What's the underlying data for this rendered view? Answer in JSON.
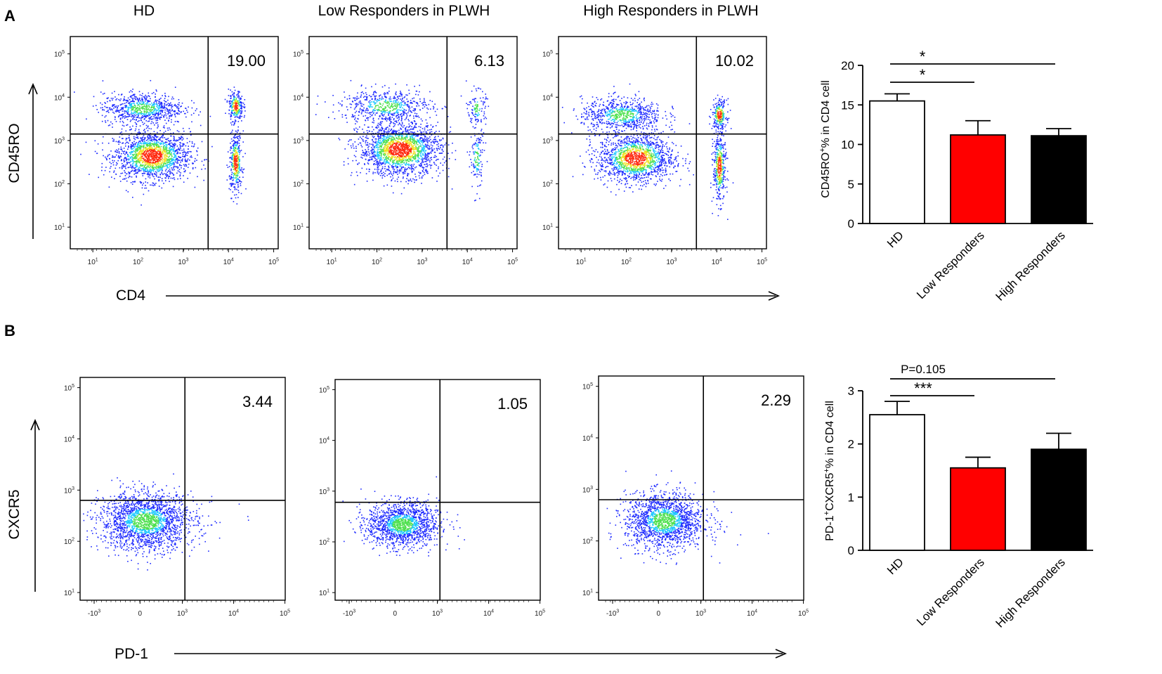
{
  "figure": {
    "panel_a_letter": "A",
    "panel_b_letter": "B"
  },
  "chart_data": [
    {
      "type": "scatter",
      "panel": "A",
      "role": "flow-cytometry-density-plots",
      "columns": [
        "HD",
        "Low Responders in PLWH",
        "High Responders in PLWH"
      ],
      "xlabel": "CD4",
      "ylabel": "CD45RO",
      "x_ticks": [
        "10",
        "10",
        "10",
        "10",
        "10"
      ],
      "x_tick_exponents": [
        "1",
        "2",
        "3",
        "4",
        "5"
      ],
      "y_ticks": [
        "10",
        "10",
        "10",
        "10",
        "10"
      ],
      "y_tick_exponents": [
        "1",
        "2",
        "3",
        "4",
        "5"
      ],
      "x_log_range": [
        0.5,
        5.1
      ],
      "y_log_range": [
        0.5,
        5.4
      ],
      "quadrant_percentages": [
        "19.00",
        "6.13",
        "10.02"
      ],
      "gate_log": [
        [
          3.55,
          3.15
        ],
        [
          3.55,
          3.15
        ],
        [
          3.55,
          3.15
        ]
      ],
      "populations": [
        [
          {
            "cx": 2.3,
            "cy": 2.65,
            "sx": 0.42,
            "sy": 0.28,
            "n": 1700,
            "hot": true
          },
          {
            "cx": 2.1,
            "cy": 3.75,
            "sx": 0.45,
            "sy": 0.18,
            "n": 800
          },
          {
            "cx": 4.15,
            "cy": 3.8,
            "sx": 0.08,
            "sy": 0.18,
            "n": 260,
            "hot": true
          },
          {
            "cx": 4.15,
            "cy": 2.5,
            "sx": 0.07,
            "sy": 0.35,
            "n": 380,
            "hot": true
          }
        ],
        [
          {
            "cx": 2.5,
            "cy": 2.8,
            "sx": 0.45,
            "sy": 0.3,
            "n": 1900,
            "hot": true
          },
          {
            "cx": 2.2,
            "cy": 3.8,
            "sx": 0.5,
            "sy": 0.2,
            "n": 600
          },
          {
            "cx": 4.2,
            "cy": 3.75,
            "sx": 0.1,
            "sy": 0.2,
            "n": 110
          },
          {
            "cx": 4.2,
            "cy": 2.6,
            "sx": 0.07,
            "sy": 0.4,
            "n": 140
          }
        ],
        [
          {
            "cx": 2.2,
            "cy": 2.6,
            "sx": 0.42,
            "sy": 0.28,
            "n": 1500,
            "hot": true
          },
          {
            "cx": 1.9,
            "cy": 3.6,
            "sx": 0.45,
            "sy": 0.2,
            "n": 750
          },
          {
            "cx": 4.05,
            "cy": 3.6,
            "sx": 0.08,
            "sy": 0.18,
            "n": 240,
            "hot": true
          },
          {
            "cx": 4.05,
            "cy": 2.4,
            "sx": 0.07,
            "sy": 0.4,
            "n": 420,
            "hot": true
          }
        ]
      ]
    },
    {
      "type": "bar",
      "panel": "A",
      "categories": [
        "HD",
        "Low Responders",
        "High Responders"
      ],
      "values": [
        15.5,
        11.2,
        11.1
      ],
      "errors": [
        0.9,
        1.8,
        0.9
      ],
      "colors": [
        "#ffffff",
        "#ff0000",
        "#000000"
      ],
      "ylim": [
        0,
        20
      ],
      "yticks": [
        "0",
        "5",
        "10",
        "15",
        "20"
      ],
      "ylabel": "CD45RO",
      "ylabel_sup": "+",
      "ylabel_rest": "% in CD4 cell",
      "significance": [
        {
          "from": 0,
          "to": 2,
          "label": "*"
        },
        {
          "from": 0,
          "to": 1,
          "label": "*"
        }
      ]
    },
    {
      "type": "scatter",
      "panel": "B",
      "role": "flow-cytometry-density-plots",
      "xlabel": "PD-1",
      "ylabel": "CXCR5",
      "x_ticks": [
        "-10",
        "0",
        "10",
        "10",
        "10"
      ],
      "x_tick_exponents": [
        "3",
        "",
        "3",
        "4",
        "5"
      ],
      "y_ticks": [
        "10",
        "10",
        "10",
        "10",
        "10"
      ],
      "y_tick_exponents": [
        "1",
        "2",
        "3",
        "4",
        "5"
      ],
      "y_log_range": [
        0.85,
        5.2
      ],
      "quadrant_percentages": [
        "3.44",
        "1.05",
        "2.29"
      ],
      "gate_y_log": [
        2.8,
        2.78,
        2.8
      ],
      "populations": [
        {
          "cx": 0.45,
          "cy": 2.4,
          "sx": 0.65,
          "sy": 0.28,
          "n": 2000
        },
        {
          "cx": 0.5,
          "cy": 2.35,
          "sx": 0.5,
          "sy": 0.22,
          "n": 1500
        },
        {
          "cx": 0.45,
          "cy": 2.4,
          "sx": 0.55,
          "sy": 0.27,
          "n": 1700
        }
      ]
    },
    {
      "type": "bar",
      "panel": "B",
      "categories": [
        "HD",
        "Low Responders",
        "High Responders"
      ],
      "values": [
        2.55,
        1.55,
        1.9
      ],
      "errors": [
        0.25,
        0.2,
        0.3
      ],
      "colors": [
        "#ffffff",
        "#ff0000",
        "#000000"
      ],
      "ylim": [
        0,
        3
      ],
      "yticks": [
        "0",
        "1",
        "2",
        "3"
      ],
      "ylabel": "PD-1",
      "ylabel_sup": "+",
      "ylabel_mid": "CXCR5",
      "ylabel_sup2": "+",
      "ylabel_rest": "% in CD4 cell",
      "significance": [
        {
          "from": 0,
          "to": 2,
          "label": "P=0.105"
        },
        {
          "from": 0,
          "to": 1,
          "label": "***"
        }
      ]
    }
  ]
}
